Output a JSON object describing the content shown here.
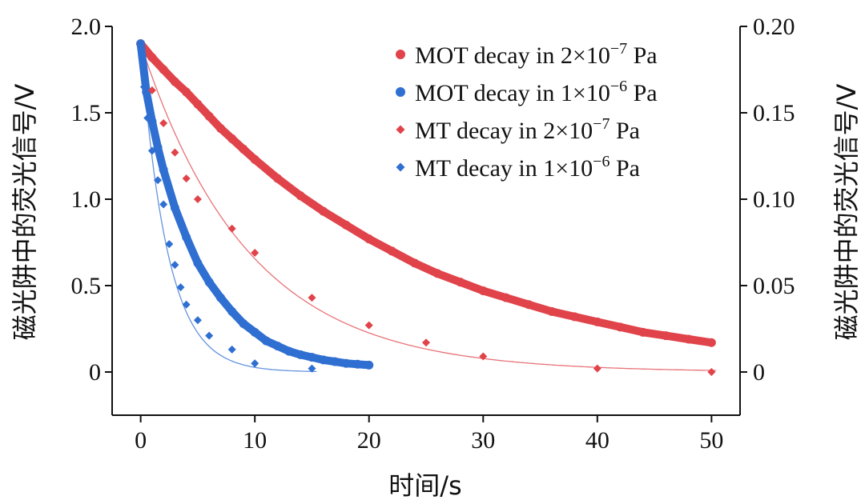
{
  "chart_data": {
    "type": "scatter",
    "title": "",
    "xlabel": "时间/s",
    "ylabel_left": "磁光阱中的荧光信号/V",
    "ylabel_right": "磁光阱中的荧光信号/V",
    "xlim": [
      -2.5,
      52.5
    ],
    "ylim_left": [
      -0.25,
      2.0
    ],
    "ylim_right": [
      -0.025,
      0.2
    ],
    "x_ticks": [
      0,
      10,
      20,
      30,
      40,
      50
    ],
    "x_tick_labels": [
      "0",
      "10",
      "20",
      "30",
      "40",
      "50"
    ],
    "y_left_ticks": [
      0,
      0.5,
      1.0,
      1.5,
      2.0
    ],
    "y_left_tick_labels": [
      "0",
      "0.5",
      "1.0",
      "1.5",
      "2.0"
    ],
    "y_right_ticks": [
      0,
      0.05,
      0.1,
      0.15,
      0.2
    ],
    "y_right_tick_labels": [
      "0",
      "0.05",
      "0.10",
      "0.15",
      "0.20"
    ],
    "legend_position": "top-right",
    "legend": [
      {
        "pre": "MOT decay in 2×10",
        "sup": "−7",
        "post": " Pa",
        "marker": "circle",
        "color": "#e0434a"
      },
      {
        "pre": "MOT decay in 1×10",
        "sup": "−6",
        "post": " Pa",
        "marker": "circle",
        "color": "#2f6fd1"
      },
      {
        "pre": "MT decay in 2×10",
        "sup": "−7",
        "post": " Pa",
        "marker": "diamond",
        "color": "#e0434a"
      },
      {
        "pre": "MT decay in 1×10",
        "sup": "−6",
        "post": " Pa",
        "marker": "diamond",
        "color": "#2f6fd1"
      }
    ],
    "series": [
      {
        "marker": "circle",
        "axis": "left",
        "color": "#e0434a",
        "x": [
          0,
          1,
          2,
          3,
          4,
          5,
          6,
          7,
          8,
          9,
          10,
          12,
          14,
          16,
          18,
          20,
          22,
          24,
          26,
          28,
          30,
          32,
          34,
          36,
          38,
          40,
          42,
          44,
          46,
          48,
          50
        ],
        "y": [
          1.9,
          1.82,
          1.75,
          1.68,
          1.62,
          1.55,
          1.48,
          1.41,
          1.35,
          1.29,
          1.23,
          1.12,
          1.02,
          0.93,
          0.85,
          0.77,
          0.7,
          0.63,
          0.57,
          0.52,
          0.47,
          0.43,
          0.39,
          0.35,
          0.32,
          0.29,
          0.26,
          0.23,
          0.21,
          0.19,
          0.17
        ]
      },
      {
        "marker": "circle",
        "axis": "left",
        "color": "#2f6fd1",
        "x": [
          0,
          0.5,
          1,
          1.5,
          2,
          3,
          4,
          5,
          6,
          7,
          8,
          9,
          10,
          11,
          12,
          13,
          14,
          15,
          16,
          17,
          18,
          19,
          20
        ],
        "y": [
          1.9,
          1.62,
          1.45,
          1.3,
          1.17,
          0.95,
          0.78,
          0.63,
          0.52,
          0.43,
          0.35,
          0.28,
          0.23,
          0.18,
          0.15,
          0.12,
          0.1,
          0.085,
          0.07,
          0.06,
          0.05,
          0.045,
          0.04
        ]
      },
      {
        "marker": "diamond",
        "axis": "right",
        "color": "#e0434a",
        "x": [
          0,
          1,
          2,
          3,
          4,
          5,
          8,
          10,
          15,
          20,
          25,
          30,
          40,
          50
        ],
        "y": [
          0.19,
          0.163,
          0.144,
          0.127,
          0.112,
          0.1,
          0.083,
          0.069,
          0.043,
          0.027,
          0.017,
          0.009,
          0.002,
          0.0
        ]
      },
      {
        "marker": "diamond",
        "axis": "right",
        "color": "#2f6fd1",
        "x": [
          0,
          0.3,
          0.6,
          1,
          1.5,
          2,
          2.5,
          3,
          3.5,
          4,
          5,
          6,
          8,
          10,
          15
        ],
        "y": [
          0.19,
          0.165,
          0.147,
          0.128,
          0.111,
          0.097,
          0.074,
          0.062,
          0.049,
          0.039,
          0.03,
          0.021,
          0.013,
          0.005,
          0.002
        ]
      }
    ],
    "fit_curves": [
      {
        "axis": "right",
        "color": "#e0434a",
        "a": 0.19,
        "tau": 9.4,
        "x_end": 50.5
      },
      {
        "axis": "right",
        "color": "#2f6fd1",
        "a": 0.19,
        "tau": 2.35,
        "x_end": 15.5
      }
    ]
  }
}
